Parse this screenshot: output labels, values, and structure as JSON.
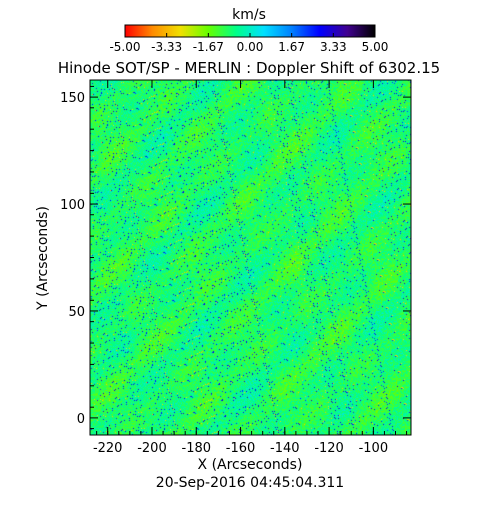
{
  "colorbar": {
    "unit_label": "km/s",
    "ticks": [
      "-5.00",
      "-3.33",
      "-1.67",
      "0.00",
      "1.67",
      "3.33",
      "5.00"
    ],
    "range": [
      -5.0,
      5.0
    ],
    "colors": [
      "#ff0000",
      "#ff8c00",
      "#f0e000",
      "#66ff00",
      "#00ff88",
      "#00e0ff",
      "#0080ff",
      "#0000ff",
      "#400090",
      "#000000"
    ]
  },
  "title": "Hinode SOT/SP - MERLIN : Doppler Shift of 6302.15",
  "x_axis": {
    "label": "X (Arcseconds)",
    "ticks": [
      -220,
      -200,
      -180,
      -160,
      -140,
      -120,
      -100
    ],
    "range": [
      -228,
      -83
    ]
  },
  "y_axis": {
    "label": "Y (Arcseconds)",
    "ticks": [
      0,
      50,
      100,
      150
    ],
    "range": [
      -8,
      158
    ]
  },
  "timestamp": "20-Sep-2016 04:45:04.311",
  "image": {
    "dominant_colors": [
      "#3cf07e",
      "#27e3a6",
      "#4df25e",
      "#1ad2d8",
      "#c8ef32",
      "#2a3fd6"
    ]
  }
}
